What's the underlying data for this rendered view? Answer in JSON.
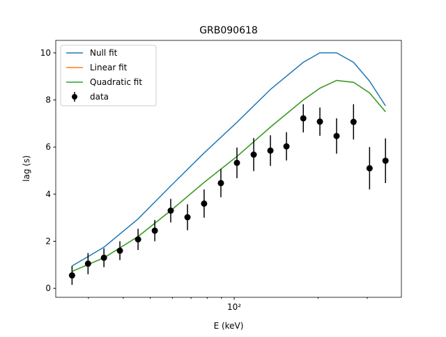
{
  "chart_data": {
    "type": "line",
    "title": "GRB090618",
    "xlabel": "E (keV)",
    "ylabel": "lag (s)",
    "xscale": "log",
    "xlim": [
      22.9,
      398
    ],
    "xticks": [
      {
        "value": 100,
        "label": "10²"
      }
    ],
    "ylim": [
      -0.38,
      10.53
    ],
    "yticks": [
      0,
      2,
      4,
      6,
      8,
      10
    ],
    "legend": "upper left",
    "curves": [
      {
        "name": "Null fit",
        "color": "#1f77b4",
        "x": [
          26.2,
          34.1,
          45.2,
          59.2,
          78.0,
          102.3,
          134.9,
          177,
          203,
          233,
          268,
          306,
          349
        ],
        "values": [
          0.95,
          1.75,
          2.95,
          4.35,
          5.75,
          7.05,
          8.45,
          9.6,
          10.0,
          10.0,
          9.6,
          8.8,
          7.75
        ]
      },
      {
        "name": "Linear fit",
        "color": "#ff7f0e",
        "x": [
          26.2,
          34.1,
          45.2,
          59.2,
          78.0,
          102.3,
          134.9,
          177,
          203,
          233,
          268,
          306,
          349
        ],
        "values": [
          0.72,
          1.3,
          2.2,
          3.3,
          4.5,
          5.6,
          6.85,
          8.0,
          8.5,
          8.83,
          8.75,
          8.3,
          7.5
        ]
      },
      {
        "name": "Quadratic fit",
        "color": "#2ca02c",
        "x": [
          26.2,
          34.1,
          45.2,
          59.2,
          78.0,
          102.3,
          134.9,
          177,
          203,
          233,
          268,
          306,
          349
        ],
        "values": [
          0.72,
          1.3,
          2.2,
          3.3,
          4.5,
          5.6,
          6.85,
          8.0,
          8.5,
          8.83,
          8.75,
          8.3,
          7.5
        ]
      }
    ],
    "points": {
      "name": "data",
      "color": "#000000",
      "x": [
        26.2,
        29.9,
        34.1,
        38.9,
        45.2,
        51.9,
        59.2,
        68.0,
        78.0,
        89.6,
        102.3,
        117.5,
        134.9,
        154,
        177,
        203,
        233,
        268,
        306,
        349
      ],
      "values": [
        0.55,
        1.05,
        1.3,
        1.6,
        2.08,
        2.45,
        3.3,
        3.02,
        3.6,
        4.47,
        5.33,
        5.68,
        5.85,
        6.03,
        7.22,
        7.08,
        6.47,
        7.07,
        5.1,
        5.42
      ],
      "errors": [
        0.4,
        0.45,
        0.4,
        0.4,
        0.45,
        0.45,
        0.5,
        0.55,
        0.6,
        0.6,
        0.65,
        0.7,
        0.65,
        0.6,
        0.6,
        0.6,
        0.75,
        0.75,
        0.9,
        0.95
      ]
    }
  }
}
